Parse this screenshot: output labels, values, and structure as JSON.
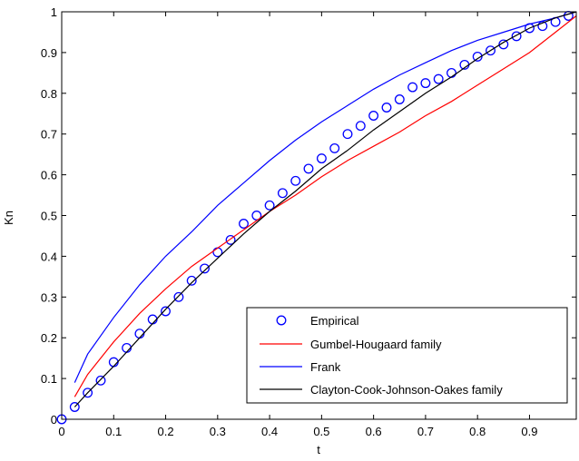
{
  "chart_data": {
    "type": "line",
    "title": "",
    "xlabel": "t",
    "ylabel": "Kn",
    "xlim": [
      0,
      0.99
    ],
    "ylim": [
      0,
      1
    ],
    "xticks": [
      "0",
      "0.1",
      "0.2",
      "0.3",
      "0.4",
      "0.5",
      "0.6",
      "0.7",
      "0.8",
      "0.9"
    ],
    "yticks": [
      "0",
      "0.1",
      "0.2",
      "0.3",
      "0.4",
      "0.5",
      "0.6",
      "0.7",
      "0.8",
      "0.9",
      "1"
    ],
    "grid": false,
    "legend_position": "bottom-right",
    "series": [
      {
        "name": "Empirical",
        "style": "markers",
        "marker": "circle",
        "color": "#0000ff",
        "x": [
          0.0,
          0.025,
          0.05,
          0.075,
          0.1,
          0.125,
          0.15,
          0.175,
          0.2,
          0.225,
          0.25,
          0.275,
          0.3,
          0.325,
          0.35,
          0.375,
          0.4,
          0.425,
          0.45,
          0.475,
          0.5,
          0.525,
          0.55,
          0.575,
          0.6,
          0.625,
          0.65,
          0.675,
          0.7,
          0.725,
          0.75,
          0.775,
          0.8,
          0.825,
          0.85,
          0.875,
          0.9,
          0.925,
          0.95,
          0.975
        ],
        "y": [
          0.0,
          0.03,
          0.065,
          0.095,
          0.14,
          0.175,
          0.21,
          0.245,
          0.265,
          0.3,
          0.34,
          0.37,
          0.41,
          0.44,
          0.48,
          0.5,
          0.525,
          0.555,
          0.585,
          0.615,
          0.64,
          0.665,
          0.7,
          0.72,
          0.745,
          0.765,
          0.785,
          0.815,
          0.825,
          0.835,
          0.85,
          0.87,
          0.89,
          0.905,
          0.92,
          0.94,
          0.96,
          0.965,
          0.975,
          0.99
        ]
      },
      {
        "name": "Gumbel-Hougaard family",
        "style": "line",
        "color": "#ff0000",
        "x": [
          0.025,
          0.05,
          0.1,
          0.15,
          0.2,
          0.25,
          0.3,
          0.35,
          0.4,
          0.45,
          0.5,
          0.55,
          0.6,
          0.65,
          0.7,
          0.75,
          0.8,
          0.85,
          0.9,
          0.95,
          0.99
        ],
        "y": [
          0.055,
          0.11,
          0.19,
          0.26,
          0.32,
          0.375,
          0.42,
          0.465,
          0.51,
          0.55,
          0.595,
          0.635,
          0.67,
          0.705,
          0.745,
          0.78,
          0.82,
          0.86,
          0.9,
          0.95,
          0.99
        ]
      },
      {
        "name": "Frank",
        "style": "line",
        "color": "#0000ff",
        "x": [
          0.025,
          0.05,
          0.1,
          0.15,
          0.2,
          0.25,
          0.3,
          0.35,
          0.4,
          0.45,
          0.5,
          0.55,
          0.6,
          0.65,
          0.7,
          0.75,
          0.8,
          0.85,
          0.9,
          0.95,
          0.99
        ],
        "y": [
          0.09,
          0.16,
          0.25,
          0.33,
          0.4,
          0.46,
          0.525,
          0.58,
          0.635,
          0.685,
          0.73,
          0.77,
          0.81,
          0.845,
          0.875,
          0.905,
          0.93,
          0.95,
          0.97,
          0.985,
          1.0
        ]
      },
      {
        "name": "Clayton-Cook-Johnson-Oakes family",
        "style": "line",
        "color": "#000000",
        "x": [
          0.025,
          0.05,
          0.1,
          0.15,
          0.2,
          0.25,
          0.3,
          0.35,
          0.4,
          0.45,
          0.5,
          0.55,
          0.6,
          0.65,
          0.7,
          0.75,
          0.8,
          0.85,
          0.9,
          0.95,
          0.99
        ],
        "y": [
          0.03,
          0.065,
          0.13,
          0.2,
          0.27,
          0.335,
          0.395,
          0.455,
          0.51,
          0.56,
          0.615,
          0.66,
          0.71,
          0.755,
          0.8,
          0.84,
          0.885,
          0.925,
          0.96,
          0.985,
          1.0
        ]
      }
    ]
  }
}
